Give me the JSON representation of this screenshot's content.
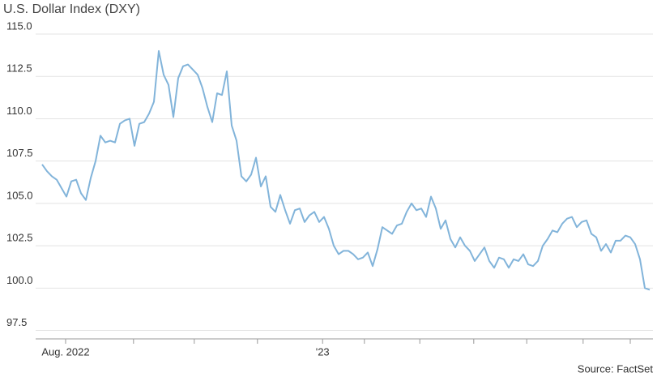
{
  "chart_data": {
    "type": "line",
    "title": "U.S. Dollar Index (DXY)",
    "source": "Source: FactSet",
    "color": "#82b4da",
    "grid": true,
    "values": [
      107.3,
      106.9,
      106.6,
      106.4,
      105.9,
      105.4,
      106.3,
      106.4,
      105.6,
      105.2,
      106.5,
      107.5,
      109.0,
      108.6,
      108.7,
      108.6,
      109.7,
      109.9,
      110.0,
      108.4,
      109.7,
      109.8,
      110.3,
      111.0,
      114.0,
      112.6,
      112.0,
      110.1,
      112.4,
      113.1,
      113.2,
      112.9,
      112.6,
      111.8,
      110.7,
      109.8,
      111.5,
      111.4,
      112.8,
      109.6,
      108.7,
      106.6,
      106.3,
      106.7,
      107.7,
      106.0,
      106.6,
      104.8,
      104.5,
      105.5,
      104.6,
      103.8,
      104.6,
      104.7,
      103.9,
      104.3,
      104.5,
      103.9,
      104.2,
      103.5,
      102.5,
      102.0,
      102.2,
      102.2,
      102.0,
      101.7,
      101.8,
      102.1,
      101.3,
      102.3,
      103.6,
      103.4,
      103.2,
      103.7,
      103.8,
      104.5,
      105.0,
      104.6,
      104.7,
      104.2,
      105.4,
      104.7,
      103.5,
      104.0,
      102.9,
      102.4,
      103.0,
      102.5,
      102.2,
      101.6,
      102.0,
      102.4,
      101.6,
      101.2,
      101.8,
      101.7,
      101.2,
      101.7,
      101.6,
      102.0,
      101.4,
      101.3,
      101.6,
      102.5,
      102.9,
      103.4,
      103.3,
      103.8,
      104.1,
      104.2,
      103.6,
      103.9,
      104.0,
      103.2,
      103.0,
      102.2,
      102.6,
      102.1,
      102.8,
      102.8,
      103.1,
      103.0,
      102.6,
      101.7,
      100.0,
      99.9
    ],
    "xlim": [
      0,
      125
    ],
    "xticks": [
      {
        "value": 4.83,
        "label": "Aug. 2022"
      },
      {
        "value": 18.8,
        "label": null
      },
      {
        "value": 31.3,
        "label": null
      },
      {
        "value": 44.3,
        "label": null
      },
      {
        "value": 57.7,
        "label": "'23"
      },
      {
        "value": 66.3,
        "label": null
      },
      {
        "value": 77.7,
        "label": null
      },
      {
        "value": 88.8,
        "label": null
      },
      {
        "value": 99.7,
        "label": null
      },
      {
        "value": 111.3,
        "label": null
      },
      {
        "value": 121,
        "label": null
      }
    ],
    "ylim": [
      97,
      115
    ],
    "yticks": [
      {
        "value": 97.5,
        "label": "97.5"
      },
      {
        "value": 100,
        "label": "100.0"
      },
      {
        "value": 102.5,
        "label": "102.5"
      },
      {
        "value": 105,
        "label": "105.0"
      },
      {
        "value": 107.5,
        "label": "107.5"
      },
      {
        "value": 110,
        "label": "110.0"
      },
      {
        "value": 112.5,
        "label": "112.5"
      },
      {
        "value": 115,
        "label": "115.0"
      }
    ]
  }
}
